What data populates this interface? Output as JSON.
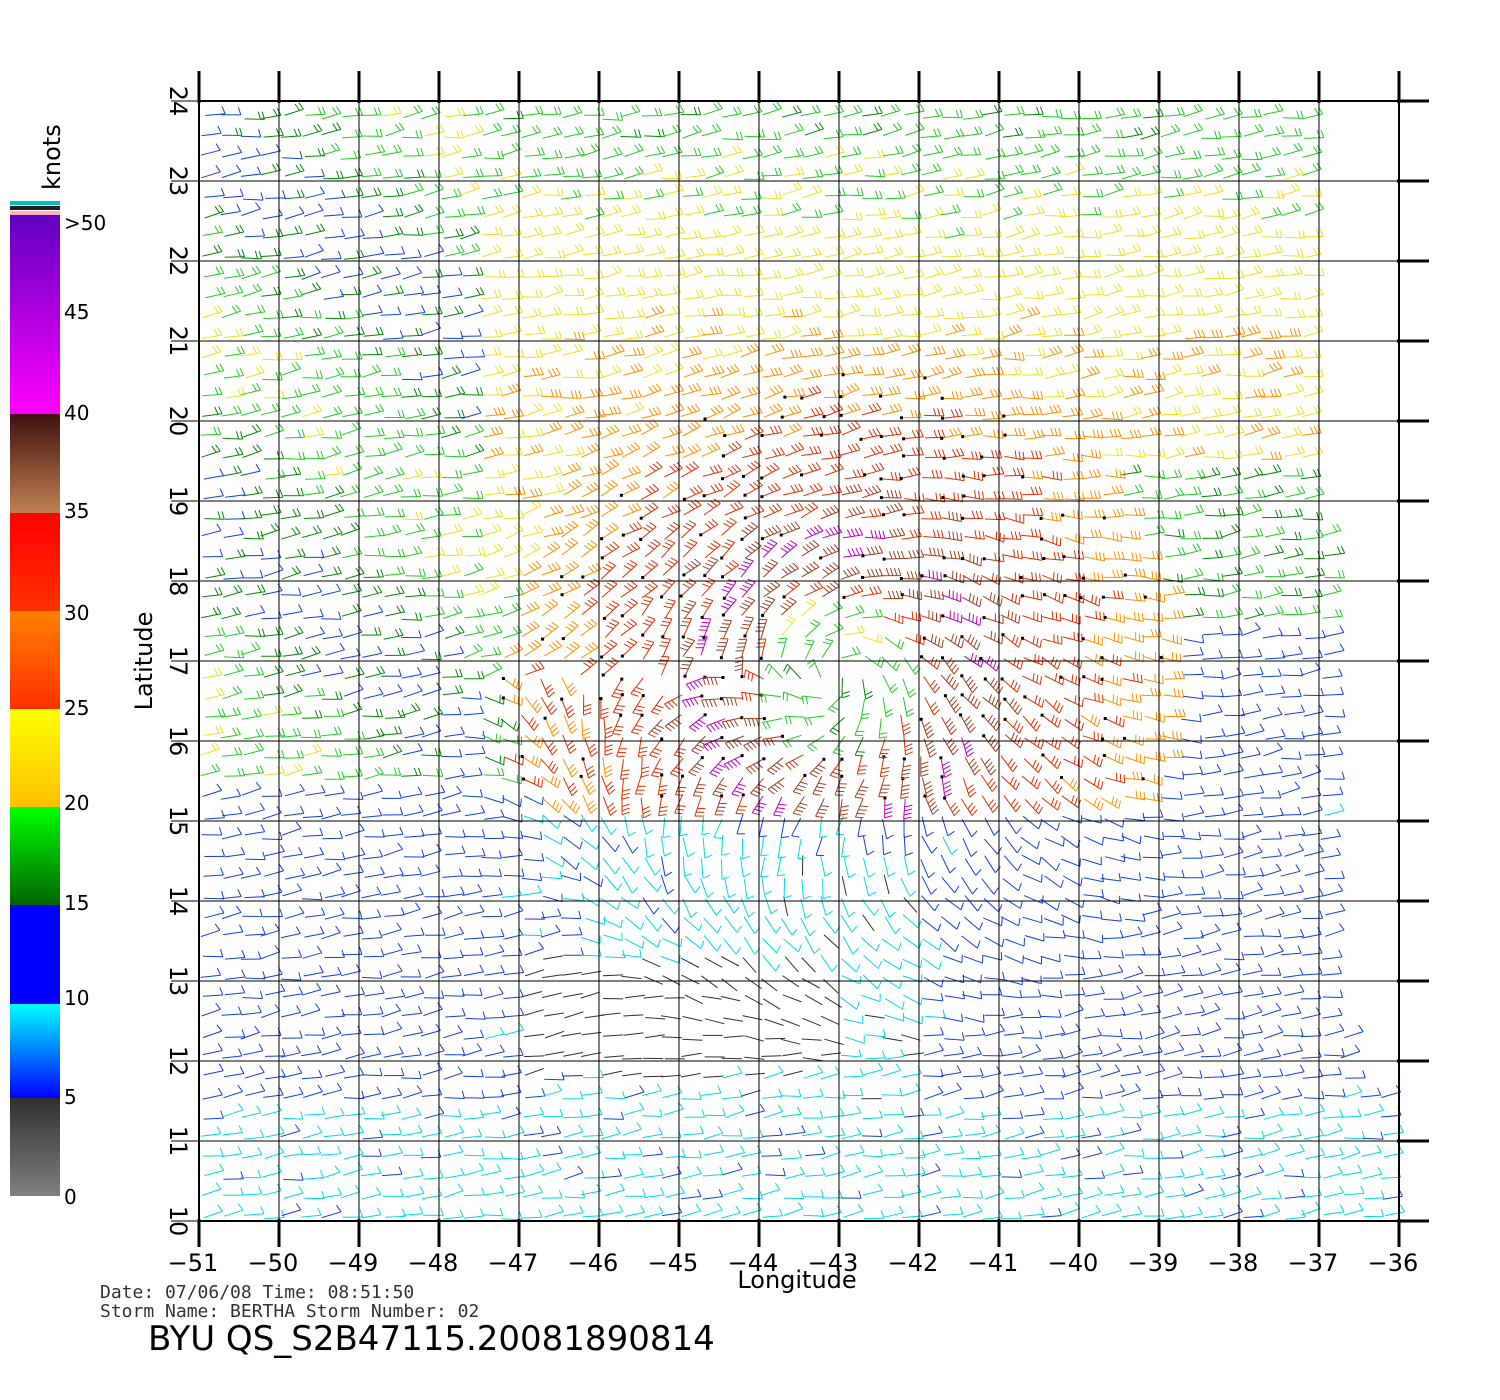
{
  "map": {
    "xlabel": "Longitude",
    "ylabel": "Latitude",
    "lon_range": [
      -51,
      -36
    ],
    "lat_range": [
      10,
      24
    ],
    "lon_ticks": [
      "−51",
      "−50",
      "−49",
      "−48",
      "−47",
      "−46",
      "−45",
      "−44",
      "−43",
      "−42",
      "−41",
      "−40",
      "−39",
      "−38",
      "−37",
      "−36"
    ],
    "lat_ticks": [
      "10",
      "11",
      "12",
      "13",
      "14",
      "15",
      "16",
      "17",
      "18",
      "19",
      "20",
      "21",
      "22",
      "23",
      "24"
    ],
    "grid": true,
    "center_lon": -43.0,
    "center_lat": 16.8
  },
  "legend": {
    "unit": "knots",
    "labels": [
      "0",
      "5",
      "10",
      "15",
      "20",
      "25",
      "30",
      "35",
      "40",
      "45",
      ">50"
    ],
    "colors": {
      "c0": "#808080",
      "c5": "#303030",
      "c5b": "#00ffff",
      "c10": "#0080ff",
      "c15": "#0000ff",
      "c15b": "#006400",
      "c20": "#00ff00",
      "c20b": "#ffff00",
      "c25": "#ffc000",
      "c25b": "#ff8000",
      "c30": "#ff3000",
      "c35": "#ff0000",
      "c35b": "#c08050",
      "c40": "#401010",
      "c40b": "#ff00ff",
      "c50": "#6000c0"
    }
  },
  "footer": {
    "line1": "Date:  07/06/08   Time:  08:51:50",
    "line2": "Storm  Name:  BERTHA    Storm  Number:  02",
    "product": "BYU  QS_S2B47115.20081890814"
  }
}
